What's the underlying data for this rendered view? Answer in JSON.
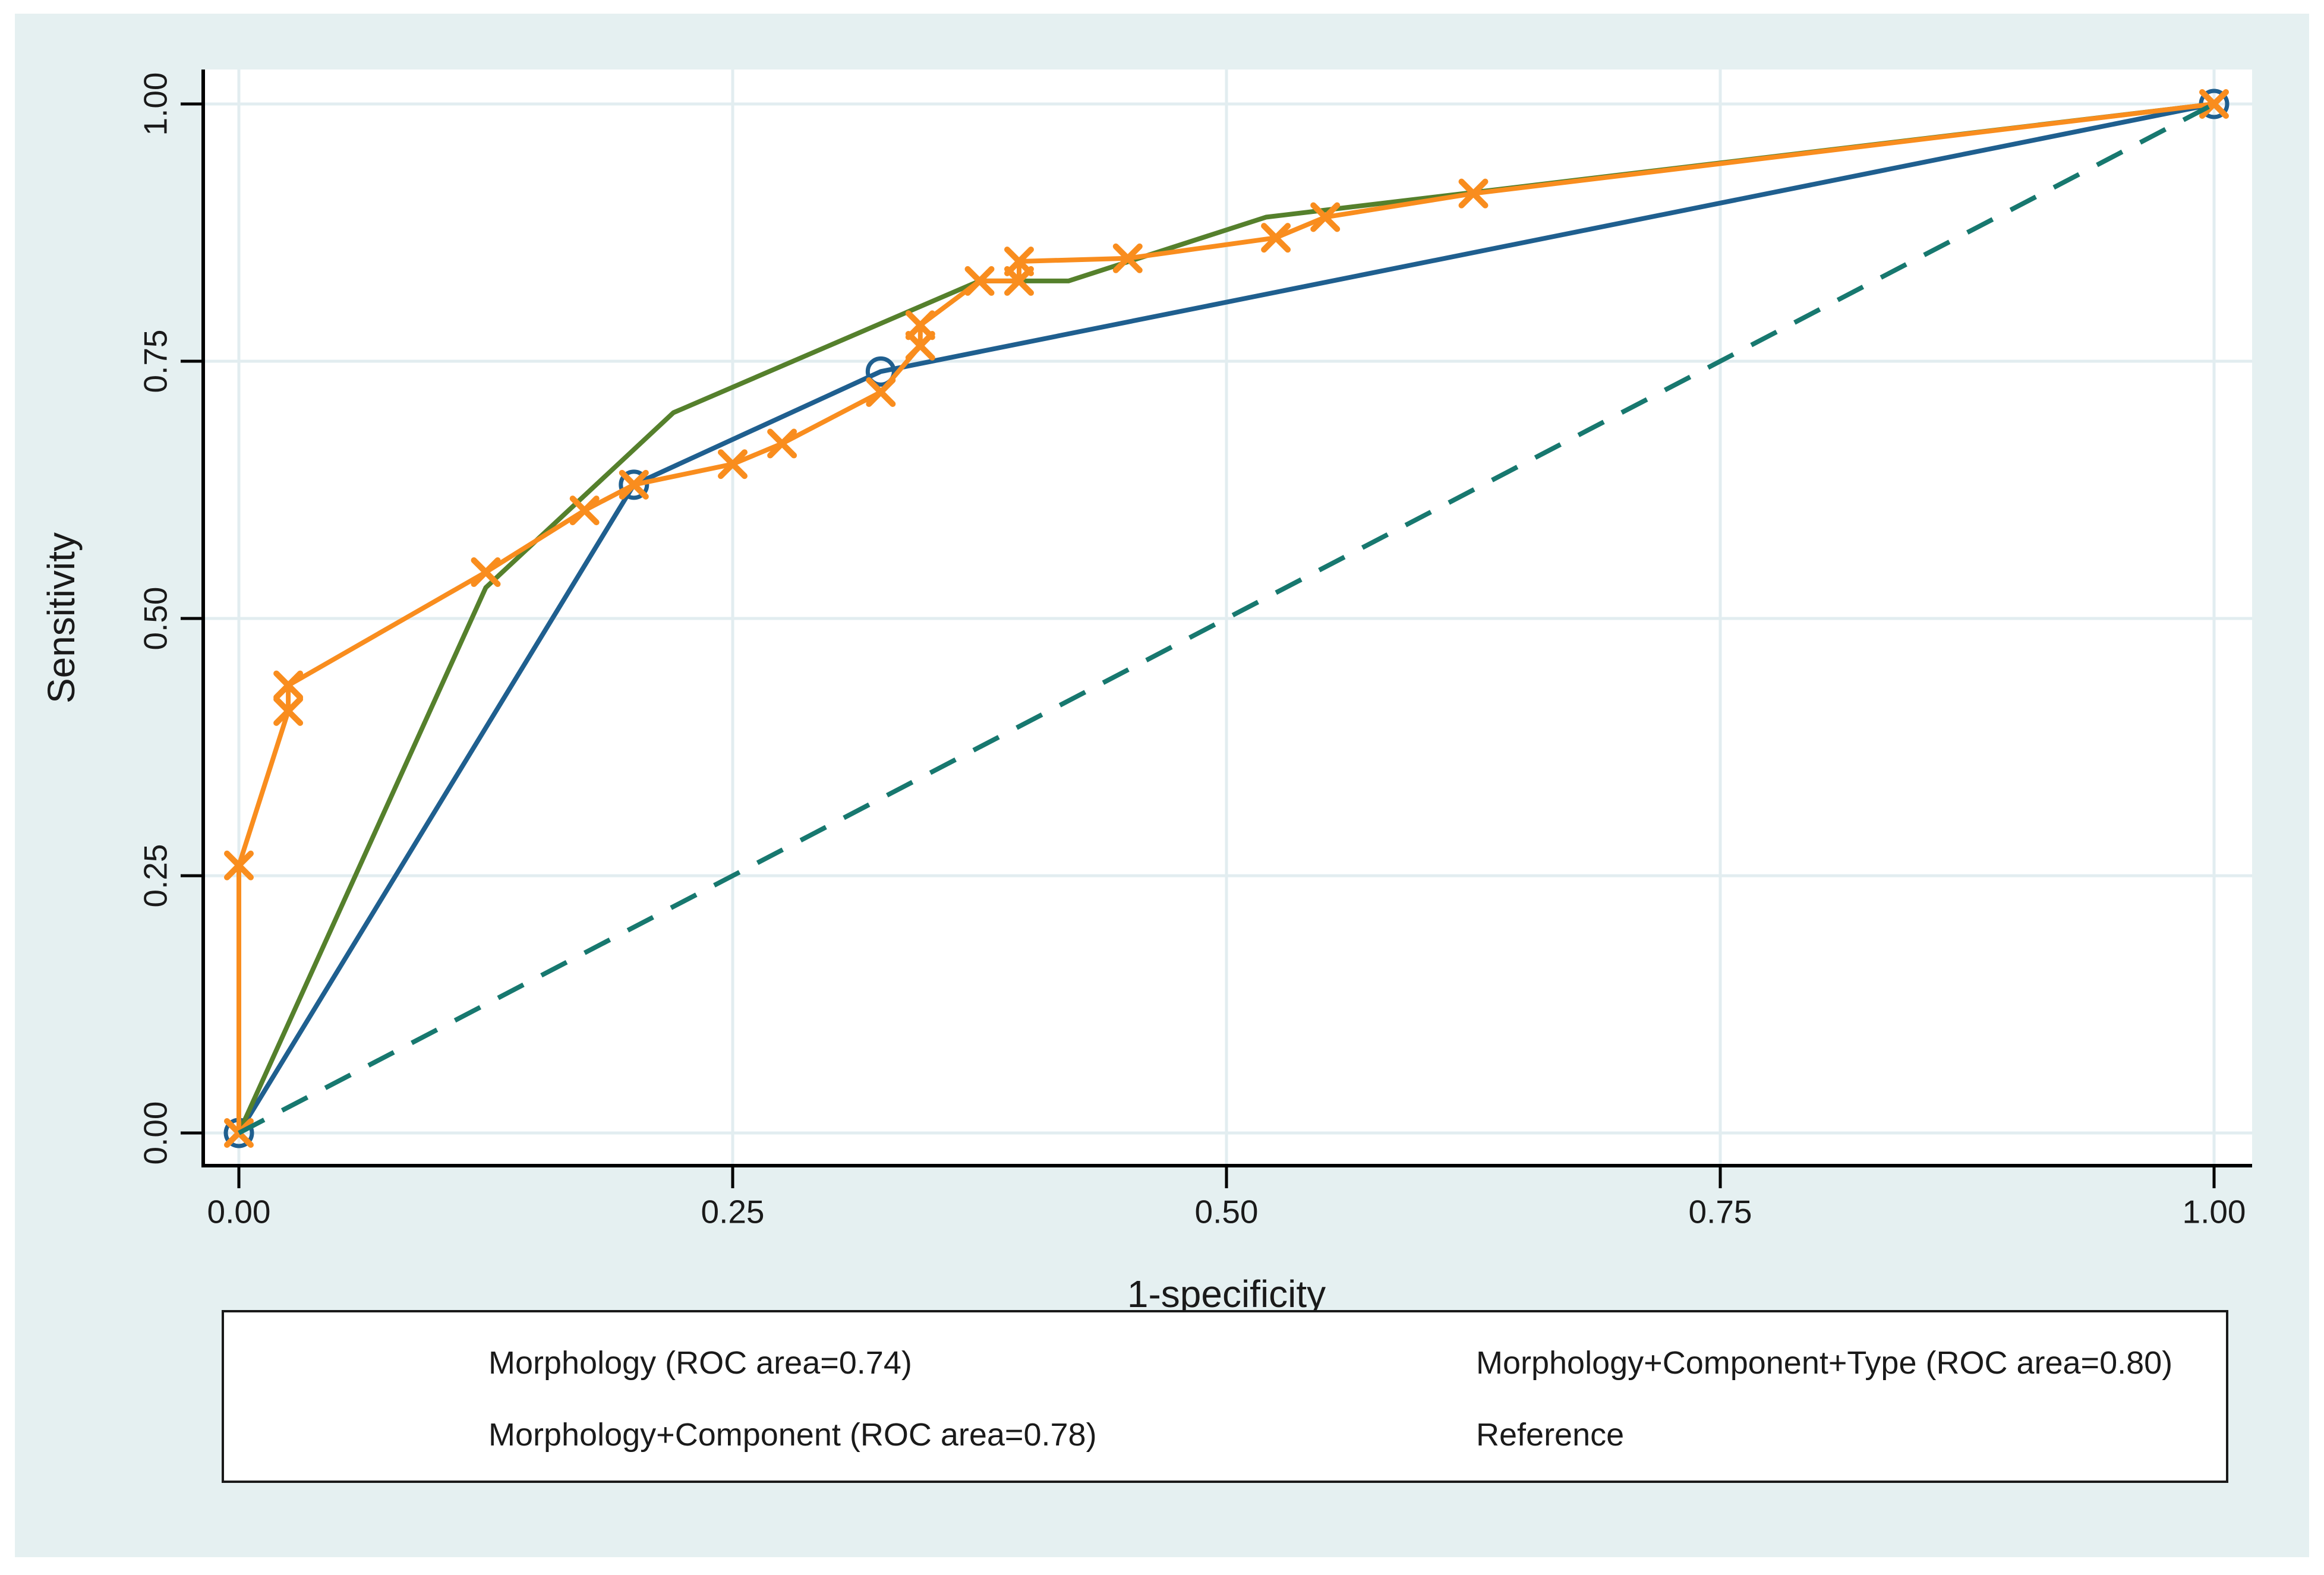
{
  "figure": {
    "background": "#ffffff",
    "panel_background": "#e5f0f1"
  },
  "axes": {
    "x": {
      "title": "1-specificity",
      "tick_labels": [
        "0.00",
        "0.25",
        "0.50",
        "0.75",
        "1.00"
      ],
      "tick_values": [
        0,
        0.25,
        0.5,
        0.75,
        1
      ],
      "range": [
        0,
        1
      ]
    },
    "y": {
      "title": "Sensitivity",
      "tick_labels": [
        "0.00",
        "0.25",
        "0.50",
        "0.75",
        "1.00"
      ],
      "tick_values": [
        0,
        0.25,
        0.5,
        0.75,
        1
      ],
      "range": [
        0,
        1
      ]
    }
  },
  "chart_data": {
    "type": "line",
    "title": "",
    "xlabel": "1-specificity",
    "ylabel": "Sensitivity",
    "xlim": [
      0,
      1
    ],
    "ylim": [
      0,
      1
    ],
    "grid": true,
    "gridline_color": "#e2edf0",
    "axis_color": "#000000",
    "legend_position": "bottom",
    "series": [
      {
        "id": "morphology",
        "name": "Morphology (ROC area=0.74)",
        "color": "#1f5f8f",
        "marker": "circle",
        "dash": "solid",
        "points": [
          [
            0,
            0
          ],
          [
            0.2,
            0.63
          ],
          [
            0.325,
            0.74
          ],
          [
            1,
            1
          ]
        ]
      },
      {
        "id": "morphology-component",
        "name": "Morphology+Component (ROC area=0.78)",
        "color": "#55802c",
        "marker": "none",
        "dash": "solid",
        "points": [
          [
            0,
            0
          ],
          [
            0.125,
            0.53
          ],
          [
            0.22,
            0.7
          ],
          [
            0.375,
            0.828
          ],
          [
            0.42,
            0.828
          ],
          [
            0.52,
            0.89
          ],
          [
            1,
            1
          ]
        ]
      },
      {
        "id": "morphology-component-type",
        "name": "Morphology+Component+Type (ROC area=0.80)",
        "color": "#f98d1e",
        "marker": "x",
        "dash": "solid",
        "points": [
          [
            0,
            0
          ],
          [
            0,
            0.26
          ],
          [
            0.025,
            0.41
          ],
          [
            0.025,
            0.435
          ],
          [
            0.125,
            0.545
          ],
          [
            0.175,
            0.605
          ],
          [
            0.2,
            0.63
          ],
          [
            0.25,
            0.65
          ],
          [
            0.275,
            0.67
          ],
          [
            0.325,
            0.72
          ],
          [
            0.345,
            0.765
          ],
          [
            0.345,
            0.785
          ],
          [
            0.375,
            0.828
          ],
          [
            0.395,
            0.828
          ],
          [
            0.395,
            0.847
          ],
          [
            0.45,
            0.85
          ],
          [
            0.525,
            0.87
          ],
          [
            0.55,
            0.89
          ],
          [
            0.625,
            0.913
          ],
          [
            1,
            1
          ]
        ]
      },
      {
        "id": "reference",
        "name": "Reference",
        "color": "#17786f",
        "marker": "none",
        "dash": "dashed",
        "points": [
          [
            0,
            0
          ],
          [
            1,
            1
          ]
        ]
      }
    ]
  },
  "legend": {
    "items": [
      {
        "label": "Morphology (ROC area=0.74)",
        "series": "morphology"
      },
      {
        "label": "Morphology+Component+Type (ROC area=0.80)",
        "series": "morphology-component-type"
      },
      {
        "label": "Morphology+Component (ROC area=0.78)",
        "series": "morphology-component"
      },
      {
        "label": "Reference",
        "series": "reference"
      }
    ]
  }
}
